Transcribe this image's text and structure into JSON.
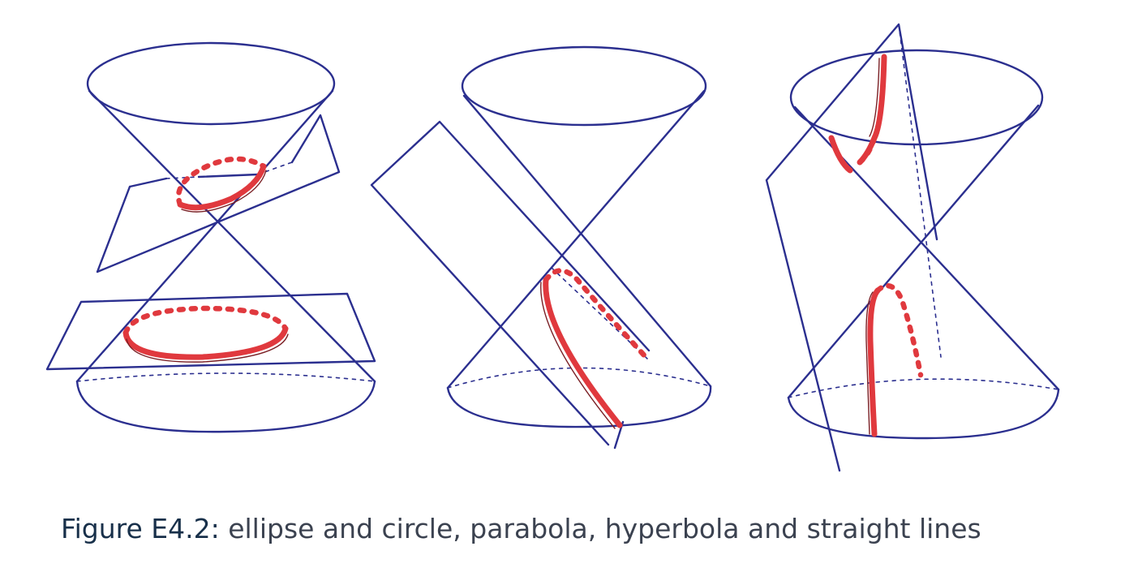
{
  "caption": {
    "label": "Figure E4.2:",
    "text": " ellipse and circle, parabola, hyperbola and straight lines"
  },
  "colors": {
    "cone_ink": "#2b2f8f",
    "section_ink": "#e0393e",
    "caption_label": "#18304a",
    "caption_text": "#3b4250"
  }
}
